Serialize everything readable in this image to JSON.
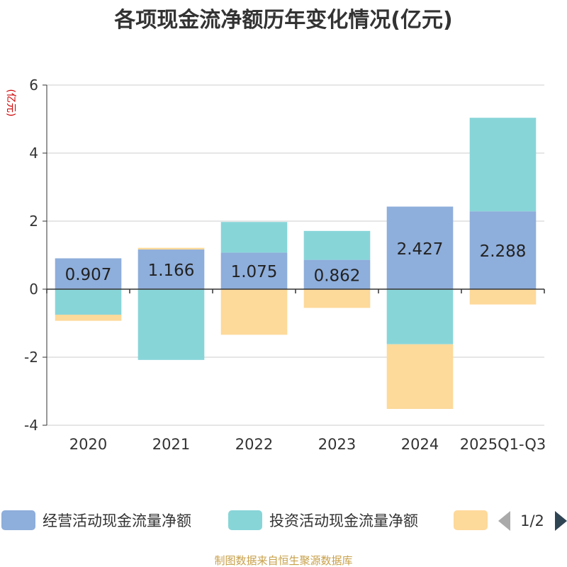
{
  "chart_data": {
    "type": "bar",
    "title": "各项现金流净额历年变化情况(亿元)",
    "ylabel": "(亿元)",
    "xlabel": "",
    "ylim": [
      -4,
      6
    ],
    "yticks": [
      -4,
      -2,
      0,
      2,
      4,
      6
    ],
    "categories": [
      "2020",
      "2021",
      "2022",
      "2023",
      "2024",
      "2025Q1-Q3"
    ],
    "stacked": true,
    "series": [
      {
        "name": "经营活动现金流量净额",
        "color": "#8eaedb",
        "values": [
          0.907,
          1.166,
          1.075,
          0.862,
          2.427,
          2.288
        ],
        "labels": [
          "0.907",
          "1.166",
          "1.075",
          "0.862",
          "2.427",
          "2.288"
        ]
      },
      {
        "name": "投资活动现金流量净额",
        "color": "#88d5d8",
        "values": [
          -0.75,
          -2.08,
          0.9,
          0.85,
          -1.62,
          2.75
        ]
      },
      {
        "name": "",
        "color": "#fdd99a",
        "values": [
          -0.18,
          0.05,
          -1.34,
          -0.55,
          -1.9,
          -0.45
        ]
      }
    ],
    "legend": {
      "position": "bottom",
      "page": "1/2"
    },
    "source": "制图数据来自恒生聚源数据库",
    "colors": {
      "title": "#333333",
      "ylabel": "#cc0000",
      "axis": "#333333",
      "grid": "#cccccc",
      "label": "#222222",
      "source": "#c8a04a",
      "pager_active": "#2f4554",
      "pager_inactive": "#aaaaaa"
    }
  }
}
